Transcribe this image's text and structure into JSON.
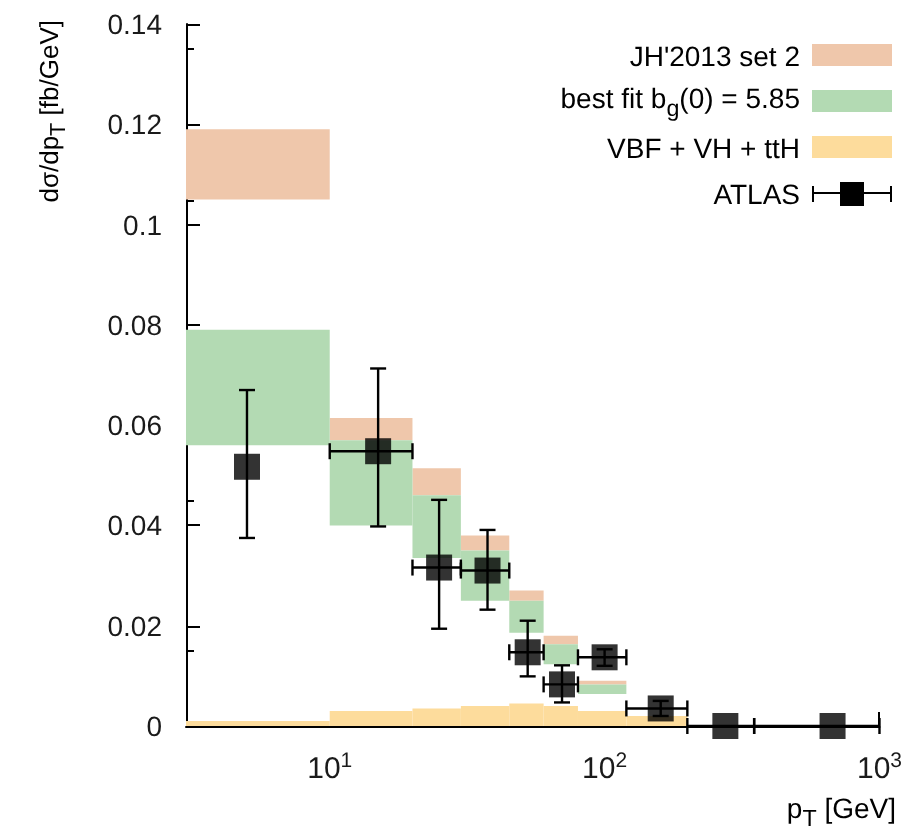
{
  "chart_data": {
    "type": "histogram",
    "xlabel": "p$_{T}$ [GeV]",
    "ylabel": "dσ/dp$_{T}$ [fb/GeV]",
    "log": "x",
    "xlim": [
      3,
      1000
    ],
    "xticks": [
      {
        "value": 10,
        "label": "10$^{1}$"
      },
      {
        "value": 100,
        "label": "10$^{2}$"
      },
      {
        "value": 1000,
        "label": "10$^{3}$"
      }
    ],
    "ylim": [
      0,
      0.14
    ],
    "yticks": [
      0,
      0.02,
      0.04,
      0.06,
      0.08,
      0.1,
      0.12,
      0.14
    ],
    "legend": "top right",
    "grid": false,
    "series": [
      {
        "name": "JH'2013 set 2",
        "color": "#efc7ab",
        "bins": [
          3,
          10,
          20,
          30,
          45,
          60,
          80,
          120
        ],
        "base": [
          0.105,
          0.057,
          0.046,
          0.035,
          0.025,
          0.0163,
          0.0083
        ],
        "values": [
          0.014,
          0.0044,
          0.0054,
          0.003,
          0.002,
          0.0017,
          0.0007
        ]
      },
      {
        "name": "best fit b$_{g}$(0) = 5.85",
        "color": "#b3dab3",
        "bins": [
          3,
          10,
          20,
          30,
          45,
          60,
          80,
          120
        ],
        "base": [
          0.056,
          0.04,
          0.0335,
          0.025,
          0.0186,
          0.0123,
          0.0064
        ],
        "values": [
          0.023,
          0.017,
          0.0125,
          0.01,
          0.0064,
          0.004,
          0.0019
        ]
      },
      {
        "name": "VBF + VH + ttH",
        "color": "#fddc9c",
        "bins": [
          3,
          10,
          20,
          30,
          45,
          60,
          80,
          120,
          200
        ],
        "values": [
          0.001,
          0.003,
          0.0035,
          0.004,
          0.0045,
          0.004,
          0.003,
          0.002
        ]
      },
      {
        "type": "scatter",
        "name": "ATLAS",
        "color": "#000000",
        "marker": "square",
        "x": [
          5,
          15,
          25,
          37.5,
          52.5,
          70,
          100,
          160,
          275,
          675
        ],
        "values": [
          0.0517,
          0.0548,
          0.0316,
          0.031,
          0.0147,
          0.0083,
          0.0137,
          0.0035,
          0,
          0
        ],
        "errors": [
          [
            0.0375,
            0.067
          ],
          [
            0.0398,
            0.0713
          ],
          [
            0.0194,
            0.0451
          ],
          [
            0.0232,
            0.0391
          ],
          [
            0.0099,
            0.021
          ],
          [
            0.0047,
            0.0121
          ],
          [
            0.012,
            0.0153
          ],
          [
            0.002,
            0.005
          ],
          null,
          null
        ],
        "xerrors": [
          null,
          [
            10,
            20
          ],
          [
            20,
            30
          ],
          [
            30,
            45
          ],
          [
            45,
            60
          ],
          [
            60,
            80
          ],
          [
            80,
            120
          ],
          [
            120,
            200
          ],
          [
            200,
            350
          ],
          [
            350,
            1000
          ]
        ]
      }
    ]
  }
}
